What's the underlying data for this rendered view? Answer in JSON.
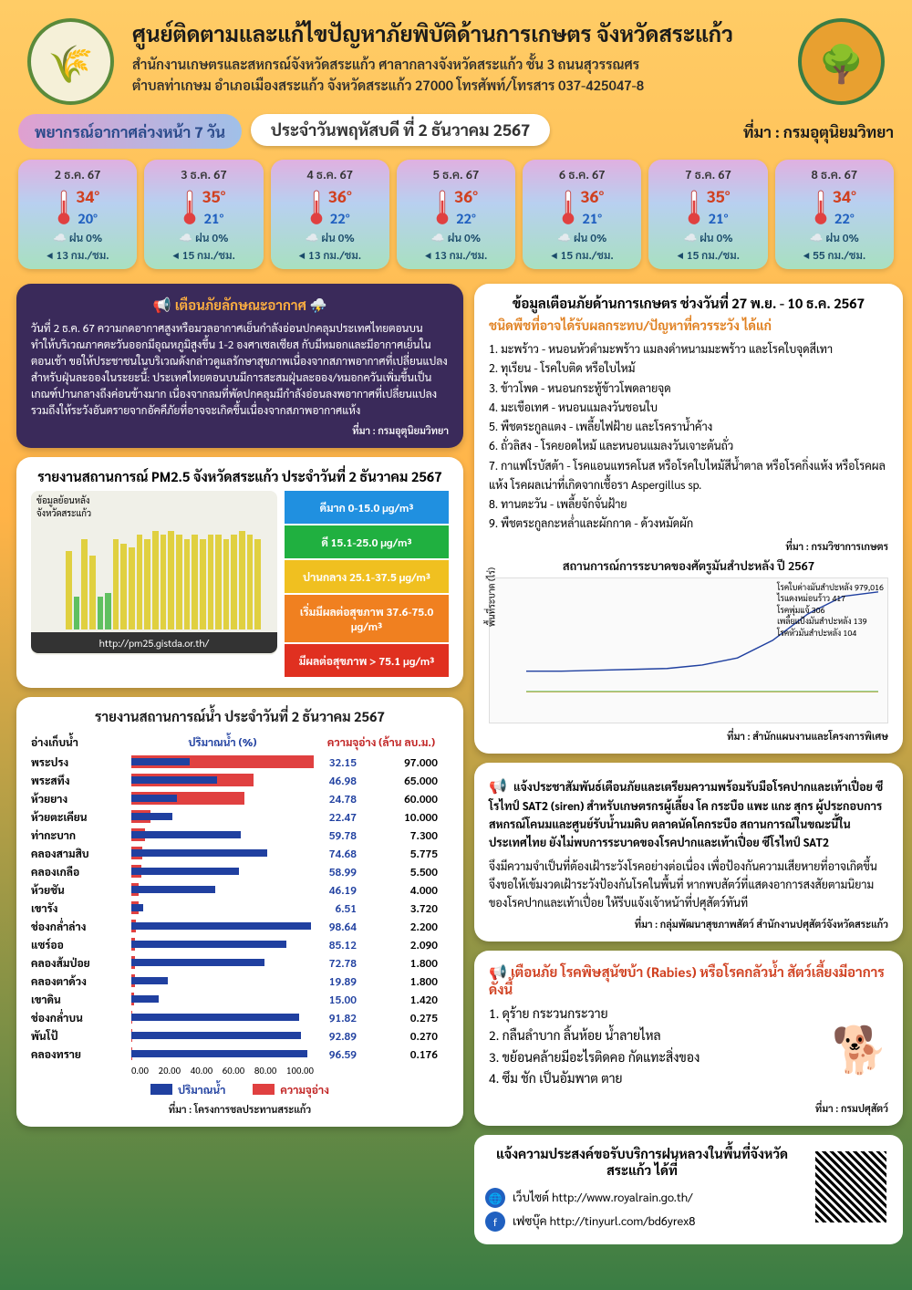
{
  "header": {
    "title": "ศูนย์ติดตามและแก้ไขปัญหาภัยพิบัติด้านการเกษตร จังหวัดสระแก้ว",
    "subtitle1": "สำนักงานเกษตรและสหกรณ์จังหวัดสระแก้ว ศาลากลางจังหวัดสระแก้ว ชั้น 3 ถนนสุวรรณศร",
    "subtitle2": "ตำบลท่าเกษม อำเภอเมืองสระแก้ว จังหวัดสระแก้ว 27000 โทรศัพท์/โทรสาร 037-425047-8"
  },
  "forecast": {
    "label": "พยากรณ์อากาศล่วงหน้า 7 วัน",
    "date_label": "ประจำวันพฤหัสบดี ที่ 2 ธันวาคม 2567",
    "source": "ที่มา : กรมอุตุนิยมวิทยา",
    "cards": [
      {
        "date": "2 ธ.ค. 67",
        "hi": "34°",
        "lo": "20°",
        "rain": "ฝน 0%",
        "wind": "13 กม./ชม."
      },
      {
        "date": "3 ธ.ค. 67",
        "hi": "35°",
        "lo": "21°",
        "rain": "ฝน 0%",
        "wind": "15 กม./ชม."
      },
      {
        "date": "4 ธ.ค. 67",
        "hi": "36°",
        "lo": "22°",
        "rain": "ฝน 0%",
        "wind": "13 กม./ชม."
      },
      {
        "date": "5 ธ.ค. 67",
        "hi": "36°",
        "lo": "22°",
        "rain": "ฝน 0%",
        "wind": "13 กม./ชม."
      },
      {
        "date": "6 ธ.ค. 67",
        "hi": "36°",
        "lo": "21°",
        "rain": "ฝน 0%",
        "wind": "15 กม./ชม."
      },
      {
        "date": "7 ธ.ค. 67",
        "hi": "35°",
        "lo": "21°",
        "rain": "ฝน 0%",
        "wind": "15 กม./ชม."
      },
      {
        "date": "8 ธ.ค. 67",
        "hi": "34°",
        "lo": "22°",
        "rain": "ฝน 0%",
        "wind": "55 กม./ชม."
      }
    ]
  },
  "warning": {
    "title": "เตือนภัยลักษณะอากาศ",
    "body": "วันที่ 2 ธ.ค. 67 ความกดอากาศสูงหรือมวลอากาศเย็นกำลังอ่อนปกคลุมประเทศไทยตอนบน ทำให้บริเวณภาคตะวันออกมีอุณหภูมิสูงขึ้น 1-2 องศาเซลเซียส กับมีหมอกและมีอากาศเย็นในตอนเช้า ขอให้ประชาชนในบริเวณดังกล่าวดูแลรักษาสุขภาพเนื่องจากสภาพอากาศที่เปลี่ยนแปลง สำหรับฝุ่นละอองในระยะนี้: ประเทศไทยตอนบนมีการสะสมฝุ่นละออง/หมอกควันเพิ่มขึ้นเป็นเกณฑ์ปานกลางถึงค่อนข้างมาก เนื่องจากลมที่พัดปกคลุมมีกำลังอ่อนลงพอากาศที่เปลี่ยนแปลง รวมถึงให้ระวังอันตรายจากอัคคีภัยที่อาจจะเกิดขึ้นเนื่องจากสภาพอากาศแห้ง",
    "source": "ที่มา : กรมอุตุนิยมวิทยา"
  },
  "ag_alert": {
    "title": "ข้อมูลเตือนภัยด้านการเกษตร ช่วงวันที่ 27 พ.ย. - 10 ธ.ค. 2567",
    "heading": "ชนิดพืชที่อาจได้รับผลกระทบ/ปัญหาที่ควรระวัง ได้แก่",
    "items": [
      "1. มะพร้าว - หนอนหัวดำมะพร้าว แมลงดำหนามมะพร้าว และโรคใบจุดสีเทา",
      "2. ทุเรียน - โรคใบติด หรือใบไหม้",
      "3. ข้าวโพด - หนอนกระทู้ข้าวโพดลายจุด",
      "4. มะเขือเทศ - หนอนแมลงวันชอนใบ",
      "5. พืชตระกูลแตง - เพลี้ยไฟฝ้าย และโรคราน้ำค้าง",
      "6. ถั่วลิสง - โรคยอดไหม้ และหนอนแมลงวันเจาะต้นถั่ว",
      "7. กาแฟโรบัสต้า - โรคแอนแทรคโนส หรือโรคใบไหม้สีน้ำตาล หรือโรคกิ่งแห้ง หรือโรคผลแห้ง โรคผลเน่าที่เกิดจากเชื้อรา Aspergillus sp.",
      "8. ทานตะวัน - เพลี้ยจักจั่นฝ้าย",
      "9. พืชตระกูลกะหล่ำและผักกาด - ด้วงหมัดผัก"
    ],
    "source": "ที่มา : กรมวิชาการเกษตร"
  },
  "pm25": {
    "title": "รายงานสถานการณ์ PM2.5 จังหวัดสระแก้ว ประจำวันที่ 2 ธันวาคม 2567",
    "url": "http://pm25.gistda.or.th/",
    "axis_label": "ข้อมูลย้อนหลัง",
    "province": "จังหวัดสระแก้ว",
    "bars": [
      48,
      20,
      55,
      45,
      20,
      22,
      55,
      52,
      50,
      58,
      55,
      60,
      58,
      60,
      58,
      55,
      58,
      55,
      58,
      58,
      55,
      58,
      60,
      58,
      55
    ],
    "bar_colors": [
      "#e0d040",
      "#60c060",
      "#e0d040",
      "#e0d040",
      "#60c060",
      "#60c060",
      "#e0d040",
      "#e0d040",
      "#e0d040",
      "#e0d040",
      "#e0d040",
      "#e0d040",
      "#e0d040",
      "#e0d040",
      "#e0d040",
      "#e0d040",
      "#e0d040",
      "#e0d040",
      "#e0d040",
      "#e0d040",
      "#e0d040",
      "#e0d040",
      "#e0d040",
      "#e0d040",
      "#e0d040"
    ],
    "legend": [
      {
        "label": "ดีมาก 0-15.0 µg/m³",
        "color": "#2090e0"
      },
      {
        "label": "ดี 15.1-25.0 µg/m³",
        "color": "#20b040"
      },
      {
        "label": "ปานกลาง 25.1-37.5 µg/m³",
        "color": "#f0c020"
      },
      {
        "label": "เริ่มมีผลต่อสุขภาพ 37.6-75.0 µg/m³",
        "color": "#f08020"
      },
      {
        "label": "มีผลต่อสุขภาพ > 75.1 µg/m³",
        "color": "#e03020"
      }
    ]
  },
  "pest_chart": {
    "title": "สถานการณ์การระบาดของศัตรูมันสำปะหลัง ปี 2567",
    "source": "ที่มา : สำนักแผนงานและโครงการพิเศษ",
    "ylabel": "พื้นที่ระบาด (ไร่)",
    "ymax": 1100000,
    "labels": [
      "โรคใบด่างมันสำปะหลัง 979,016",
      "ไรแดงหม่อนร้าว 417",
      "โรคพุ่มแจ้ 306",
      "เพลี้ยแป้งมันสำปะหลัง 139",
      "โรคหัวมันสำปะหลัง 104"
    ]
  },
  "water": {
    "title": "รายงานสถานการณ์น้ำ ประจำวันที่ 2 ธันวาคม 2567",
    "col1": "อ่างเก็บน้ำ",
    "col2": "ปริมาณน้ำ (%)",
    "col3": "ความจุอ่าง (ล้าน ลบ.ม.)",
    "rows": [
      {
        "name": "พระปรง",
        "pct": 32.15,
        "cap": "97.000"
      },
      {
        "name": "พระสทึง",
        "pct": 46.98,
        "cap": "65.000"
      },
      {
        "name": "ห้วยยาง",
        "pct": 24.78,
        "cap": "60.000"
      },
      {
        "name": "ห้วยตะเคียน",
        "pct": 22.47,
        "cap": "10.000"
      },
      {
        "name": "ท่ากะบาก",
        "pct": 59.78,
        "cap": "7.300"
      },
      {
        "name": "คลองสามสิบ",
        "pct": 74.68,
        "cap": "5.775"
      },
      {
        "name": "คลองเกลือ",
        "pct": 58.99,
        "cap": "5.500"
      },
      {
        "name": "ห้วยชัน",
        "pct": 46.19,
        "cap": "4.000"
      },
      {
        "name": "เขารัง",
        "pct": 6.51,
        "cap": "3.720"
      },
      {
        "name": "ช่องกล่ำล่าง",
        "pct": 98.64,
        "cap": "2.200"
      },
      {
        "name": "แซร์ออ",
        "pct": 85.12,
        "cap": "2.090"
      },
      {
        "name": "คลองส้มป่อย",
        "pct": 72.78,
        "cap": "1.800"
      },
      {
        "name": "คลองตาด้วง",
        "pct": 19.89,
        "cap": "1.800"
      },
      {
        "name": "เขาดิน",
        "pct": 15.0,
        "cap": "1.420"
      },
      {
        "name": "ช่องกล่ำบน",
        "pct": 91.82,
        "cap": "0.275"
      },
      {
        "name": "พันโป้",
        "pct": 92.89,
        "cap": "0.270"
      },
      {
        "name": "คลองทราย",
        "pct": 96.59,
        "cap": "0.176"
      }
    ],
    "axis": [
      "0.00",
      "20.00",
      "40.00",
      "60.00",
      "80.00",
      "100.00"
    ],
    "leg1": "ปริมาณน้ำ",
    "leg2": "ความจุอ่าง",
    "source": "ที่มา : โครงการชลประทานสระแก้ว"
  },
  "fmd": {
    "body": "แจ้งประชาสัมพันธ์เตือนภัยและเตรียมความพร้อมรับมือโรคปากและเท้าเปื่อย ซีโรไทป์ SAT2 (siren) สำหรับเกษตรกรผู้เลี้ยง โค กระบือ แพะ แกะ สุกร ผู้ประกอบการ สหกรณ์โคนมและศูนย์รับน้ำนมดิบ ตลาดนัดโคกระบือ สถานการณ์ในขณะนี้ในประเทศไทย ยังไม่พบการระบาดของโรคปากและเท้าเปื่อย ซีโรไทป์ SAT2",
    "body2": "จึงมีความจำเป็นที่ต้องเฝ้าระวังโรคอย่างต่อเนื่อง เพื่อป้องกันความเสียหายที่อาจเกิดขึ้น จึงขอให้เข้มงวดเฝ้าระวังป้องกันโรคในพื้นที่ หากพบสัตว์ที่แสดงอาการสงสัยตามนิยามของโรคปากและเท้าเปื่อย ให้รีบแจ้งเจ้าหน้าที่ปศุสัตว์ทันที",
    "source": "ที่มา : กลุ่มพัฒนาสุขภาพสัตว์ สำนักงานปศุสัตว์จังหวัดสระแก้ว"
  },
  "rabies": {
    "title": "เตือนภัย โรคพิษสุนัขบ้า (Rabies) หรือโรคกลัวน้ำ สัตว์เลี้ยงมีอาการ ดังนี้",
    "items": [
      "1. ดุร้าย กระวนกระวาย",
      "2. กลืนลำบาก ลิ้นห้อย น้ำลายไหล",
      "3. ขย้อนคล้ายมีอะไรติดคอ กัดแทะสิ่งของ",
      "4. ซึม ชัก เป็นอัมพาต ตาย"
    ],
    "source": "ที่มา : กรมปศุสัตว์"
  },
  "rain_service": {
    "title": "แจ้งความประสงค์ขอรับบริการฝนหลวงในพื้นที่จังหวัดสระแก้ว ได้ที่",
    "web_label": "เว็บไซต์ http://www.royalrain.go.th/",
    "fb_label": "เฟซบุ๊ค http://tinyurl.com/bd6yrex8"
  }
}
